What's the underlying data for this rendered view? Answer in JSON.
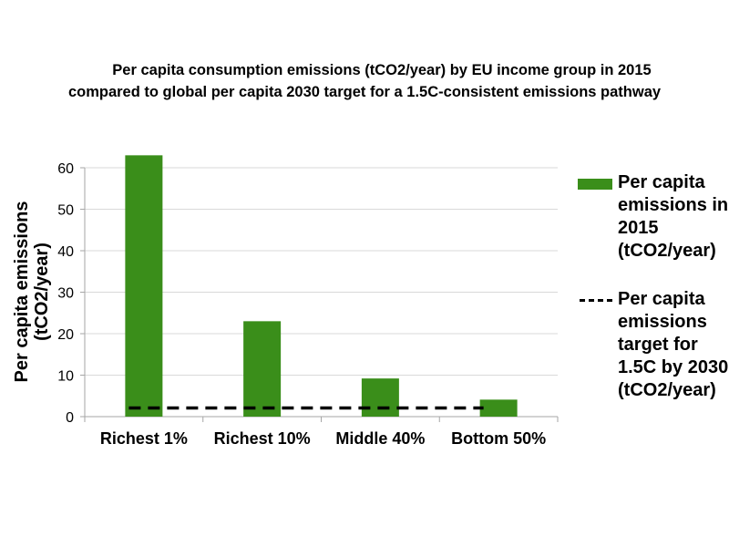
{
  "chart_data": {
    "type": "bar",
    "title_lines": [
      "Per capita consumption emissions (tCO2/year) by EU income group in 2015",
      "compared to global per capita 2030 target for a 1.5C-consistent emissions pathway"
    ],
    "categories": [
      "Richest 1%",
      "Richest 10%",
      "Middle 40%",
      "Bottom 50%"
    ],
    "series": [
      {
        "name": "Per capita emissions in 2015 (tCO2/year)",
        "kind": "bar",
        "color": "#3a8e1a",
        "values": [
          63,
          23,
          9.2,
          4.1
        ]
      },
      {
        "name": "Per capita emissions target for 1.5C by 2030 (tCO2/year)",
        "kind": "dashed-line",
        "color": "#000000",
        "values": [
          2.1,
          2.1,
          2.1,
          2.1
        ]
      }
    ],
    "ylabel": "Per capita emissions (tCO2/year)",
    "ylim": [
      0,
      65
    ],
    "yticks": [
      "0",
      "10",
      "20",
      "30",
      "40",
      "50",
      "60"
    ],
    "grid": true,
    "legend_position": "right"
  }
}
